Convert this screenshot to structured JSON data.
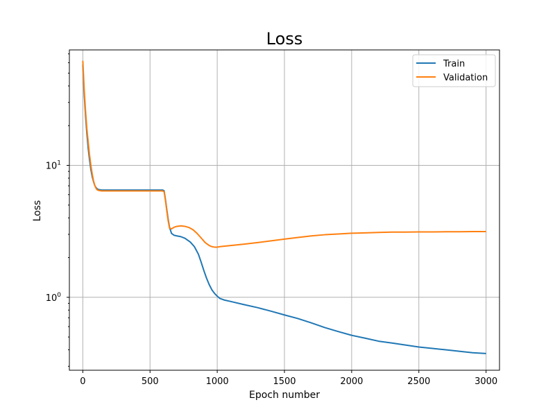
{
  "chart_data": {
    "type": "line",
    "title": "Loss",
    "xlabel": "Epoch number",
    "ylabel": "Loss",
    "xlim": [
      -100,
      3100
    ],
    "ylim": [
      0.28,
      75
    ],
    "yscale": "log",
    "grid": true,
    "legend_position": "top-right",
    "x_ticks": [
      {
        "value": 0,
        "label": "0"
      },
      {
        "value": 500,
        "label": "500"
      },
      {
        "value": 1000,
        "label": "1000"
      },
      {
        "value": 1500,
        "label": "1500"
      },
      {
        "value": 2000,
        "label": "2000"
      },
      {
        "value": 2500,
        "label": "2500"
      },
      {
        "value": 3000,
        "label": "3000"
      }
    ],
    "y_ticks": [
      {
        "value": 1,
        "base": "10",
        "exp": "0"
      },
      {
        "value": 10,
        "base": "10",
        "exp": "1"
      }
    ],
    "series": [
      {
        "name": "Train",
        "color": "#1f77b4",
        "x": [
          0,
          10,
          20,
          30,
          40,
          50,
          60,
          70,
          80,
          90,
          100,
          110,
          120,
          140,
          160,
          200,
          300,
          400,
          500,
          560,
          595,
          605,
          615,
          625,
          635,
          645,
          660,
          680,
          700,
          730,
          760,
          800,
          830,
          860,
          880,
          900,
          920,
          940,
          960,
          980,
          1000,
          1020,
          1050,
          1100,
          1200,
          1300,
          1400,
          1500,
          1600,
          1700,
          1800,
          1900,
          2000,
          2100,
          2200,
          2300,
          2400,
          2500,
          2600,
          2700,
          2800,
          2900,
          3000
        ],
        "y": [
          58,
          35,
          24,
          17.5,
          13.5,
          11,
          9.3,
          8.2,
          7.5,
          7.0,
          6.75,
          6.6,
          6.55,
          6.5,
          6.5,
          6.5,
          6.5,
          6.5,
          6.5,
          6.5,
          6.5,
          6.4,
          5.5,
          4.6,
          3.9,
          3.4,
          3.05,
          2.95,
          2.92,
          2.88,
          2.8,
          2.62,
          2.42,
          2.12,
          1.85,
          1.6,
          1.4,
          1.25,
          1.14,
          1.07,
          1.02,
          0.98,
          0.955,
          0.93,
          0.88,
          0.835,
          0.785,
          0.735,
          0.69,
          0.64,
          0.59,
          0.55,
          0.515,
          0.49,
          0.465,
          0.45,
          0.435,
          0.42,
          0.41,
          0.4,
          0.39,
          0.38,
          0.375
        ]
      },
      {
        "name": "Validation",
        "color": "#ff7f0e",
        "x": [
          0,
          10,
          20,
          30,
          40,
          50,
          60,
          70,
          80,
          90,
          100,
          110,
          120,
          140,
          160,
          200,
          300,
          400,
          500,
          560,
          595,
          605,
          615,
          625,
          635,
          645,
          660,
          680,
          700,
          730,
          760,
          790,
          820,
          850,
          880,
          910,
          940,
          960,
          980,
          1000,
          1020,
          1050,
          1100,
          1200,
          1300,
          1400,
          1500,
          1600,
          1700,
          1800,
          1900,
          2000,
          2100,
          2200,
          2300,
          2400,
          2500,
          2600,
          2700,
          2800,
          2900,
          3000
        ],
        "y": [
          62,
          38,
          26,
          19,
          15,
          12,
          10,
          8.6,
          7.6,
          7.0,
          6.65,
          6.5,
          6.45,
          6.4,
          6.4,
          6.4,
          6.4,
          6.4,
          6.4,
          6.4,
          6.4,
          6.3,
          5.4,
          4.5,
          3.8,
          3.35,
          3.3,
          3.4,
          3.45,
          3.48,
          3.45,
          3.38,
          3.25,
          3.05,
          2.82,
          2.6,
          2.47,
          2.42,
          2.4,
          2.4,
          2.42,
          2.44,
          2.47,
          2.53,
          2.6,
          2.68,
          2.76,
          2.84,
          2.92,
          2.98,
          3.02,
          3.06,
          3.08,
          3.1,
          3.12,
          3.12,
          3.13,
          3.13,
          3.14,
          3.14,
          3.15,
          3.15
        ]
      }
    ]
  }
}
